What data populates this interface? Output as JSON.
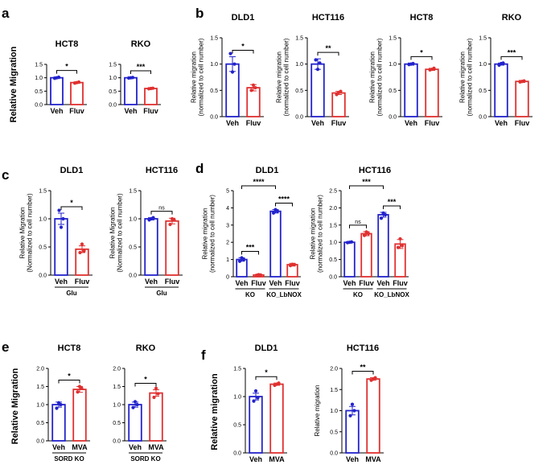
{
  "panels": [
    "a",
    "b",
    "c",
    "d",
    "e",
    "f"
  ],
  "colors": {
    "veh": "#2222cc",
    "fluv": "#e03030"
  },
  "chart_data": [
    {
      "id": "a1",
      "panel": "a",
      "type": "bar",
      "title": "HCT8",
      "ylabel": "Relative Migration",
      "ylim": [
        0,
        1.5
      ],
      "yticks": [
        "0.0",
        "0.5",
        "1.0",
        "1.5"
      ],
      "categories": [
        "Veh",
        "Fluv"
      ],
      "values": [
        1.0,
        0.82
      ],
      "errors": [
        0.03,
        0.03
      ],
      "points": [
        [
          0.98,
          1.0,
          1.02
        ],
        [
          0.8,
          0.82,
          0.84
        ]
      ],
      "sig": "*",
      "group_label": ""
    },
    {
      "id": "a2",
      "panel": "a",
      "type": "bar",
      "title": "RKO",
      "ylabel": "",
      "ylim": [
        0,
        1.5
      ],
      "yticks": [
        "0.0",
        "0.5",
        "1.0",
        "1.5"
      ],
      "categories": [
        "Veh",
        "Fluv"
      ],
      "values": [
        1.0,
        0.6
      ],
      "errors": [
        0.02,
        0.02
      ],
      "points": [
        [
          0.99,
          1.0,
          1.01
        ],
        [
          0.59,
          0.6,
          0.61
        ]
      ],
      "sig": "***",
      "group_label": ""
    },
    {
      "id": "b1",
      "panel": "b",
      "type": "bar",
      "title": "DLD1",
      "ylabel": "Relative migration\n(normalized to cell number)",
      "ylim": [
        0,
        1.5
      ],
      "yticks": [
        "0.0",
        "0.5",
        "1.0",
        "1.5"
      ],
      "categories": [
        "Veh",
        "Fluv"
      ],
      "values": [
        1.0,
        0.55
      ],
      "errors": [
        0.14,
        0.06
      ],
      "points": [
        [
          1.2,
          0.85,
          1.0
        ],
        [
          0.5,
          0.6,
          0.55
        ]
      ],
      "sig": "*",
      "group_label": ""
    },
    {
      "id": "b2",
      "panel": "b",
      "type": "bar",
      "title": "HCT116",
      "ylabel": "Relative migration\n(normalized to cell number)",
      "ylim": [
        0,
        1.5
      ],
      "yticks": [
        "0.0",
        "0.5",
        "1.0",
        "1.5"
      ],
      "categories": [
        "Veh",
        "Fluv"
      ],
      "values": [
        1.0,
        0.45
      ],
      "errors": [
        0.1,
        0.03
      ],
      "points": [
        [
          1.08,
          0.9,
          1.02
        ],
        [
          0.42,
          0.46,
          0.48
        ]
      ],
      "sig": "**",
      "group_label": ""
    },
    {
      "id": "b3",
      "panel": "b",
      "type": "bar",
      "title": "HCT8",
      "ylabel": "Relative migration\n(normalized to cell number)",
      "ylim": [
        0,
        1.5
      ],
      "yticks": [
        "0.0",
        "0.5",
        "1.0",
        "1.5"
      ],
      "categories": [
        "Veh",
        "Fluv"
      ],
      "values": [
        1.0,
        0.9
      ],
      "errors": [
        0.02,
        0.02
      ],
      "points": [
        [
          0.99,
          1.0,
          1.01
        ],
        [
          0.89,
          0.9,
          0.92
        ]
      ],
      "sig": "*",
      "group_label": ""
    },
    {
      "id": "b4",
      "panel": "b",
      "type": "bar",
      "title": "RKO",
      "ylabel": "Relative migration\n(normalized to cell number)",
      "ylim": [
        0,
        1.5
      ],
      "yticks": [
        "0.0",
        "0.5",
        "1.0",
        "1.5"
      ],
      "categories": [
        "Veh",
        "Fluv"
      ],
      "values": [
        1.0,
        0.67
      ],
      "errors": [
        0.02,
        0.02
      ],
      "points": [
        [
          0.98,
          1.01,
          1.02
        ],
        [
          0.66,
          0.67,
          0.68
        ]
      ],
      "sig": "***",
      "group_label": ""
    },
    {
      "id": "c1",
      "panel": "c",
      "type": "bar",
      "title": "DLD1",
      "ylabel": "Relative Migration\n(Normalized to cell number)",
      "ylim": [
        0,
        1.5
      ],
      "yticks": [
        "0.0",
        "0.5",
        "1.0",
        "1.5"
      ],
      "categories": [
        "Veh",
        "Fluv"
      ],
      "values": [
        1.0,
        0.46
      ],
      "errors": [
        0.1,
        0.06
      ],
      "points": [
        [
          1.15,
          0.85,
          1.0
        ],
        [
          0.4,
          0.55,
          0.43
        ]
      ],
      "sig": "*",
      "group_label": "Glu"
    },
    {
      "id": "c2",
      "panel": "c",
      "type": "bar",
      "title": "HCT116",
      "ylabel": "Relative Migration\n(Normalized to cell number)",
      "ylim": [
        0,
        1.5
      ],
      "yticks": [
        "0.0",
        "0.5",
        "1.0",
        "1.5"
      ],
      "categories": [
        "Veh",
        "Fluv"
      ],
      "values": [
        1.0,
        0.96
      ],
      "errors": [
        0.02,
        0.05
      ],
      "points": [
        [
          0.98,
          1.0,
          1.02
        ],
        [
          0.9,
          1.0,
          0.98
        ]
      ],
      "sig": "ns",
      "group_label": "Glu"
    },
    {
      "id": "d1",
      "panel": "d",
      "type": "bar",
      "title": "DLD1",
      "ylabel": "Relative migration\n(normalized to cell number)",
      "ylim": [
        0,
        5
      ],
      "yticks": [
        "0",
        "1",
        "2",
        "3",
        "4",
        "5"
      ],
      "categories": [
        "Veh",
        "Fluv",
        "Veh",
        "Fluv"
      ],
      "values": [
        1.0,
        0.1,
        3.8,
        0.7
      ],
      "errors": [
        0.1,
        0.05,
        0.1,
        0.08
      ],
      "points": [
        [
          0.9,
          1.1,
          1.0
        ],
        [
          0.08,
          0.12,
          0.1
        ],
        [
          3.7,
          3.9,
          3.8
        ],
        [
          0.65,
          0.72,
          0.7
        ]
      ],
      "group_label": [
        "KO",
        "KO_LbNOX"
      ],
      "sig_brackets": [
        {
          "from": 0,
          "to": 1,
          "label": "***",
          "level": 0
        },
        {
          "from": 2,
          "to": 3,
          "label": "****",
          "level": 0
        },
        {
          "from": 0,
          "to": 2,
          "label": "****",
          "level": 1
        }
      ]
    },
    {
      "id": "d2",
      "panel": "d",
      "type": "bar",
      "title": "HCT116",
      "ylabel": "Relative migration\n(normalized to cell number)",
      "ylim": [
        0,
        2.5
      ],
      "yticks": [
        "0.0",
        "0.5",
        "1.0",
        "1.5",
        "2.0",
        "2.5"
      ],
      "categories": [
        "Veh",
        "Fluv",
        "Veh",
        "Fluv"
      ],
      "values": [
        1.0,
        1.25,
        1.8,
        0.95
      ],
      "errors": [
        0.02,
        0.06,
        0.07,
        0.13
      ],
      "points": [
        [
          0.99,
          1.0,
          1.01
        ],
        [
          1.2,
          1.3,
          1.25
        ],
        [
          1.7,
          1.85,
          1.8
        ],
        [
          0.85,
          1.1,
          0.9
        ]
      ],
      "group_label": [
        "KO",
        "KO_LbNOX"
      ],
      "sig_brackets": [
        {
          "from": 0,
          "to": 1,
          "label": "ns",
          "level": 0
        },
        {
          "from": 2,
          "to": 3,
          "label": "***",
          "level": 0
        },
        {
          "from": 0,
          "to": 2,
          "label": "***",
          "level": 1
        }
      ]
    },
    {
      "id": "e1",
      "panel": "e",
      "type": "bar",
      "title": "HCT8",
      "ylabel": "Relative Migration",
      "ylim": [
        0,
        2.0
      ],
      "yticks": [
        "0.0",
        "0.5",
        "1.0",
        "1.5",
        "2.0"
      ],
      "categories": [
        "Veh",
        "MVA"
      ],
      "values": [
        1.0,
        1.42
      ],
      "errors": [
        0.07,
        0.08
      ],
      "points": [
        [
          0.9,
          1.05,
          1.0
        ],
        [
          1.35,
          1.5,
          1.45
        ]
      ],
      "sig": "*",
      "group_label": "SORD KO"
    },
    {
      "id": "e2",
      "panel": "e",
      "type": "bar",
      "title": "RKO",
      "ylabel": "",
      "ylim": [
        0,
        2.0
      ],
      "yticks": [
        "0.0",
        "0.5",
        "1.0",
        "1.5",
        "2.0"
      ],
      "categories": [
        "Veh",
        "MVA"
      ],
      "values": [
        1.0,
        1.32
      ],
      "errors": [
        0.07,
        0.09
      ],
      "points": [
        [
          0.92,
          1.08,
          1.0
        ],
        [
          1.2,
          1.45,
          1.3
        ]
      ],
      "sig": "*",
      "group_label": "SORD KO"
    },
    {
      "id": "f1",
      "panel": "f",
      "type": "bar",
      "title": "DLD1",
      "ylabel": "Relative migration",
      "ylim": [
        0,
        1.5
      ],
      "yticks": [
        "0.0",
        "0.5",
        "1.0",
        "1.5"
      ],
      "categories": [
        "Veh",
        "MVA"
      ],
      "values": [
        1.0,
        1.22
      ],
      "errors": [
        0.06,
        0.02
      ],
      "points": [
        [
          0.92,
          1.1,
          0.98
        ],
        [
          1.2,
          1.22,
          1.24
        ]
      ],
      "sig": "*",
      "group_label": ""
    },
    {
      "id": "f2",
      "panel": "f",
      "type": "bar",
      "title": "HCT116",
      "ylabel": "Relative migration",
      "ylim": [
        0,
        2.0
      ],
      "yticks": [
        "0.0",
        "0.5",
        "1.0",
        "1.5",
        "2.0"
      ],
      "categories": [
        "Veh",
        "MVA"
      ],
      "values": [
        1.0,
        1.75
      ],
      "errors": [
        0.1,
        0.03
      ],
      "points": [
        [
          0.88,
          1.15,
          1.0
        ],
        [
          1.72,
          1.75,
          1.78
        ]
      ],
      "sig": "**",
      "group_label": ""
    }
  ]
}
